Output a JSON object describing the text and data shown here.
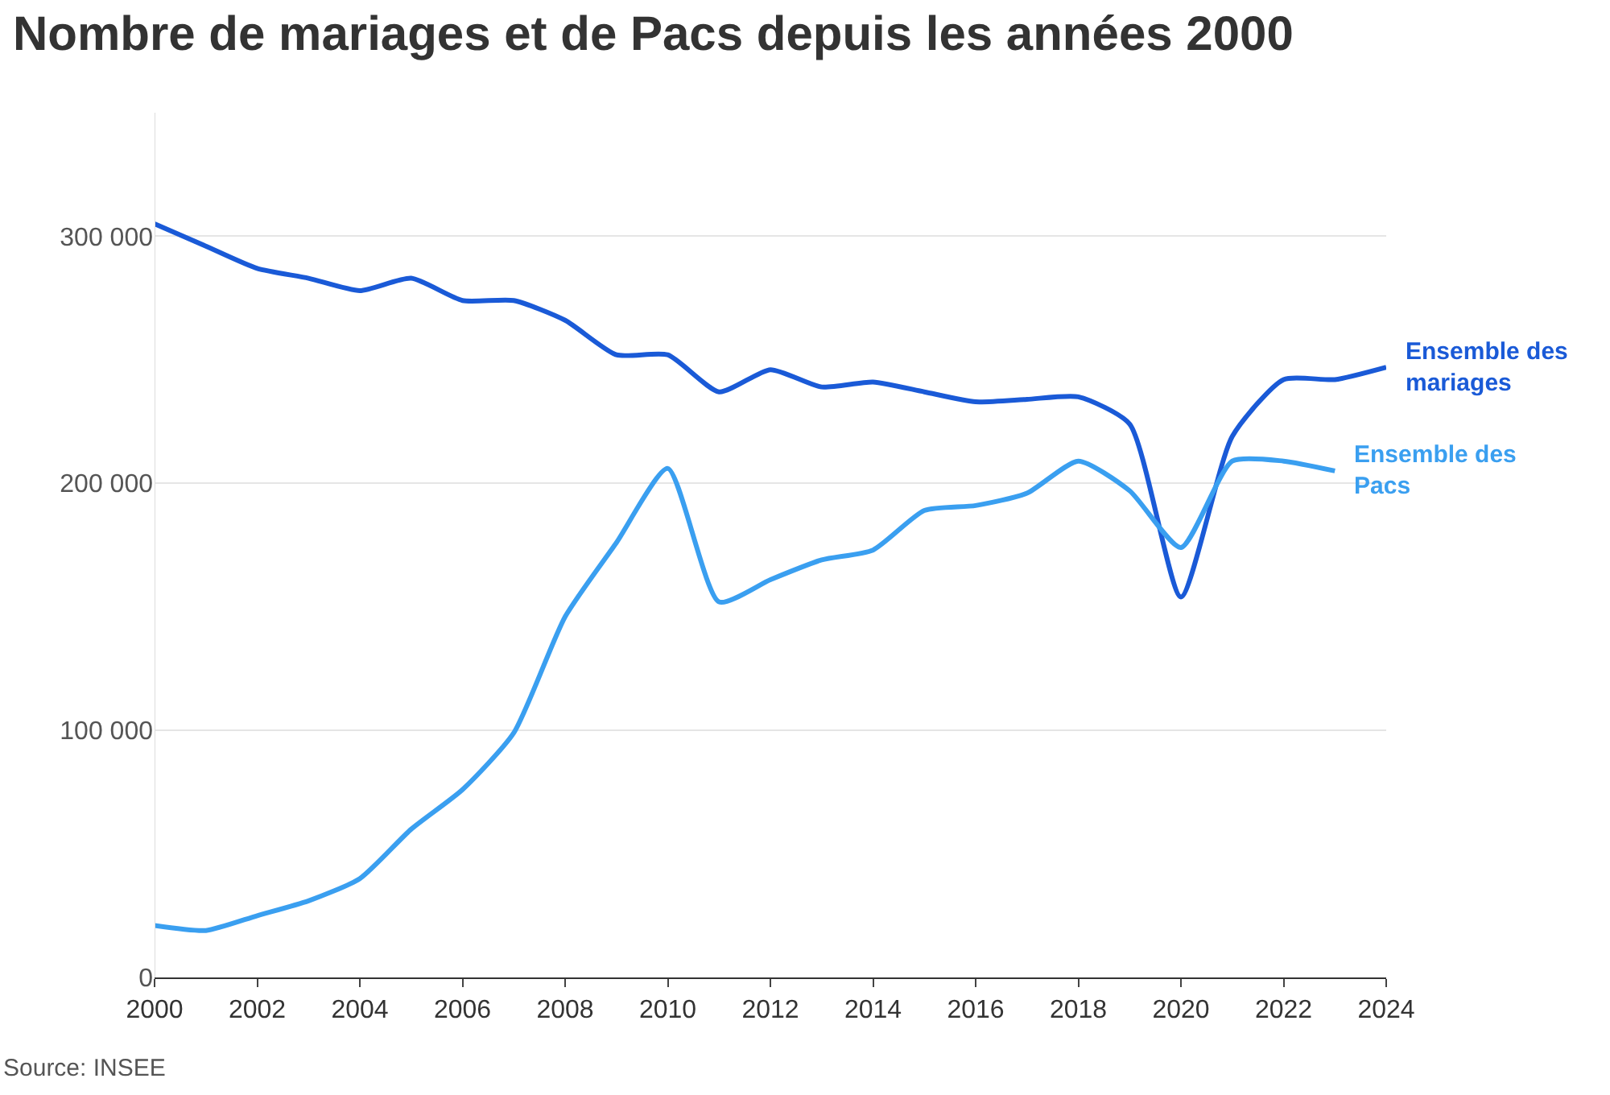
{
  "chart_data": {
    "type": "line",
    "title": "Nombre de mariages et de Pacs depuis les années 2000",
    "x": [
      2000,
      2001,
      2002,
      2003,
      2004,
      2005,
      2006,
      2007,
      2008,
      2009,
      2010,
      2011,
      2012,
      2013,
      2014,
      2015,
      2016,
      2017,
      2018,
      2019,
      2020,
      2021,
      2022,
      2023,
      2024
    ],
    "series": [
      {
        "name": "Ensemble des mariages",
        "color": "#1a5ad7",
        "values": [
          305000,
          296000,
          287000,
          283000,
          278000,
          283000,
          274000,
          274000,
          266000,
          252000,
          252000,
          237000,
          246000,
          239000,
          241000,
          237000,
          233000,
          234000,
          235000,
          224000,
          154000,
          219000,
          242000,
          242000,
          247000
        ]
      },
      {
        "name": "Ensemble des Pacs",
        "color": "#3a9ff0",
        "values": [
          21000,
          19000,
          25000,
          31000,
          40000,
          60000,
          76000,
          99000,
          146000,
          176000,
          206000,
          152000,
          161000,
          169000,
          173000,
          189000,
          191000,
          196000,
          209000,
          197000,
          174000,
          209000,
          209000,
          205000,
          null
        ]
      }
    ],
    "xlim": [
      2000,
      2024
    ],
    "xticks": [
      2000,
      2002,
      2004,
      2006,
      2008,
      2010,
      2012,
      2014,
      2016,
      2018,
      2020,
      2022,
      2024
    ],
    "ylim": [
      0,
      350000
    ],
    "yticks": [
      0,
      {
        "value": 100000,
        "label": "100 000"
      },
      {
        "value": 200000,
        "label": "200 000"
      },
      {
        "value": 300000,
        "label": "300 000"
      }
    ],
    "grid": "y",
    "legend": false,
    "marker": "none",
    "line_style": "solid",
    "annotations": [
      "Source: INSEE"
    ]
  }
}
